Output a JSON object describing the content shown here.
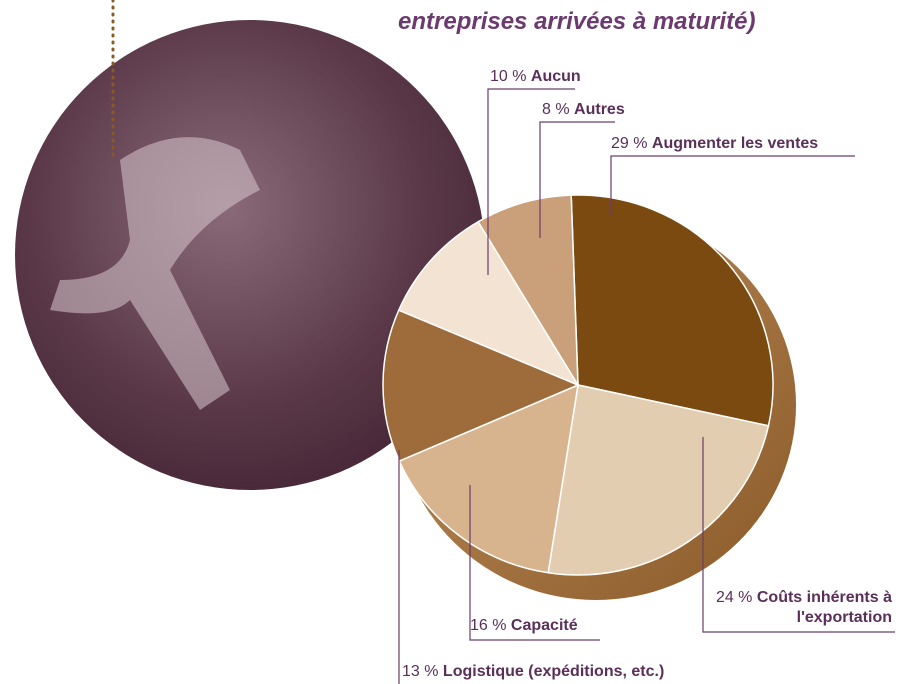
{
  "chart_data": {
    "type": "pie",
    "title": "entreprises arrivées à maturité)",
    "categories": [
      "Augmenter les ventes",
      "Coûts inhérents à l'exportation",
      "Capacité",
      "Logistique (expéditions, etc.)",
      "Aucun",
      "Autres"
    ],
    "values": [
      29,
      24,
      16,
      13,
      10,
      8
    ],
    "value_labels": [
      "29 %",
      "24 %",
      "16 %",
      "13 %",
      "10 %",
      "8 %"
    ],
    "colors": [
      "#7a4a10",
      "#e3cdb0",
      "#d7b48d",
      "#9e6c3a",
      "#f3e3d2",
      "#c9a07a"
    ]
  }
}
